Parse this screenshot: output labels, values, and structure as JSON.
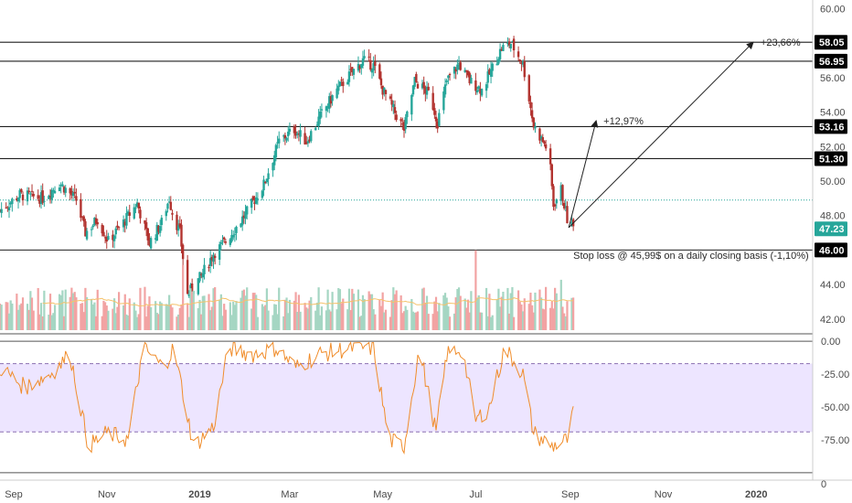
{
  "chart_data": [
    {
      "type": "candlestick",
      "price_axis": {
        "ticks": [
          "60.00",
          "58.00",
          "56.00",
          "54.00",
          "52.00",
          "50.00",
          "48.00",
          "46.00",
          "44.00",
          "42.00"
        ],
        "tick_values": [
          60,
          58,
          56,
          54,
          52,
          50,
          48,
          46,
          44,
          42
        ],
        "ylim": [
          41.3,
          60.5
        ]
      },
      "x_axis": {
        "ticks": [
          "Sep",
          "Nov",
          "2019",
          "Mar",
          "May",
          "Jul",
          "Sep",
          "Nov",
          "2020"
        ],
        "tick_dates": [
          "2018-09-01",
          "2018-11-01",
          "2019-01-01",
          "2019-03-01",
          "2019-05-01",
          "2019-07-01",
          "2019-09-01",
          "2019-11-01",
          "2020-01-01"
        ],
        "xlim": [
          "2018-08-23",
          "2020-02-07"
        ]
      },
      "horizontal_levels": [
        {
          "value": 58.05,
          "label": "58.05"
        },
        {
          "value": 56.95,
          "label": "56.95"
        },
        {
          "value": 53.16,
          "label": "53.16"
        },
        {
          "value": 51.3,
          "label": "51.30"
        },
        {
          "value": 46.0,
          "label": "46.00"
        }
      ],
      "current_price": {
        "value": 47.23,
        "label": "47.23",
        "color": "#26a69a"
      },
      "last_price_dotted_line": 47.23,
      "annotations": [
        {
          "text": "+23,66%",
          "from": {
            "date": "2019-08-31",
            "price": 47.3
          },
          "to": {
            "date": "2019-12-30",
            "price": 58.05
          }
        },
        {
          "text": "+12,97%",
          "from": {
            "date": "2019-08-31",
            "price": 47.3
          },
          "to": {
            "date": "2019-09-18",
            "price": 53.5
          }
        },
        {
          "text": "Stop loss @ 45,99$ on a daily closing basis (-1,10%)",
          "date": "2019-09-03",
          "price": 45.7
        }
      ],
      "colors": {
        "up": "#26a69a",
        "down": "#b2332f",
        "volume_up": "#a5d6c3",
        "volume_down": "#f2a3a3",
        "volume_ma": "#f5c26b"
      },
      "anchors": [
        [
          "2018-08-23",
          48.3
        ],
        [
          "2018-09-05",
          49.2
        ],
        [
          "2018-09-20",
          49.0
        ],
        [
          "2018-10-01",
          49.9
        ],
        [
          "2018-10-12",
          48.9
        ],
        [
          "2018-10-18",
          47.0
        ],
        [
          "2018-10-26",
          47.8
        ],
        [
          "2018-11-02",
          46.5
        ],
        [
          "2018-11-12",
          47.6
        ],
        [
          "2018-11-21",
          48.7
        ],
        [
          "2018-11-29",
          46.4
        ],
        [
          "2018-12-07",
          47.6
        ],
        [
          "2018-12-12",
          49.0
        ],
        [
          "2018-12-14",
          48.2
        ],
        [
          "2018-12-19",
          47.0
        ],
        [
          "2018-12-24",
          43.4
        ],
        [
          "2019-01-02",
          44.5
        ],
        [
          "2019-01-10",
          45.8
        ],
        [
          "2019-01-18",
          46.5
        ],
        [
          "2019-02-01",
          48.2
        ],
        [
          "2019-02-12",
          49.8
        ],
        [
          "2019-02-22",
          52.3
        ],
        [
          "2019-03-04",
          53.0
        ],
        [
          "2019-03-12",
          52.3
        ],
        [
          "2019-03-22",
          53.9
        ],
        [
          "2019-04-01",
          55.3
        ],
        [
          "2019-04-10",
          56.2
        ],
        [
          "2019-04-18",
          57.0
        ],
        [
          "2019-04-25",
          56.7
        ],
        [
          "2019-05-01",
          55.3
        ],
        [
          "2019-05-10",
          53.8
        ],
        [
          "2019-05-15",
          53.0
        ],
        [
          "2019-05-22",
          55.8
        ],
        [
          "2019-06-01",
          55.0
        ],
        [
          "2019-06-06",
          53.4
        ],
        [
          "2019-06-12",
          55.8
        ],
        [
          "2019-06-20",
          56.8
        ],
        [
          "2019-06-27",
          55.8
        ],
        [
          "2019-07-05",
          55.3
        ],
        [
          "2019-07-10",
          56.2
        ],
        [
          "2019-07-18",
          57.7
        ],
        [
          "2019-07-24",
          58.0
        ],
        [
          "2019-08-01",
          56.8
        ],
        [
          "2019-08-05",
          54.8
        ],
        [
          "2019-08-08",
          53.2
        ],
        [
          "2019-08-14",
          52.3
        ],
        [
          "2019-08-18",
          51.7
        ],
        [
          "2019-08-21",
          48.6
        ],
        [
          "2019-08-26",
          49.5
        ],
        [
          "2019-08-30",
          47.8
        ],
        [
          "2019-09-03",
          47.3
        ]
      ]
    },
    {
      "type": "volume",
      "ma_color": "#f5c26b"
    },
    {
      "type": "line",
      "indicator": "oscillator",
      "y_ticks": [
        "0.00",
        "-25.00",
        "-50.00",
        "-75.00"
      ],
      "y_tick_values": [
        0,
        -25,
        -50,
        -75
      ],
      "extra_tick": {
        "label": "0",
        "value": -100
      },
      "ylim": [
        -105,
        5
      ],
      "upper_band": -17,
      "lower_band": -69,
      "band_fill": "#ede5ff",
      "line_color": "#f08c2a",
      "anchors": [
        [
          "2018-08-23",
          -20
        ],
        [
          "2018-09-08",
          -35
        ],
        [
          "2018-09-25",
          -25
        ],
        [
          "2018-10-08",
          -10
        ],
        [
          "2018-10-20",
          -80
        ],
        [
          "2018-11-01",
          -70
        ],
        [
          "2018-11-15",
          -75
        ],
        [
          "2018-11-25",
          -5
        ],
        [
          "2018-12-08",
          -20
        ],
        [
          "2018-12-15",
          -5
        ],
        [
          "2018-12-28",
          -80
        ],
        [
          "2019-01-10",
          -65
        ],
        [
          "2019-01-20",
          -5
        ],
        [
          "2019-02-05",
          -10
        ],
        [
          "2019-02-20",
          -5
        ],
        [
          "2019-03-05",
          -20
        ],
        [
          "2019-03-20",
          -10
        ],
        [
          "2019-04-10",
          -5
        ],
        [
          "2019-04-25",
          -5
        ],
        [
          "2019-05-05",
          -75
        ],
        [
          "2019-05-15",
          -80
        ],
        [
          "2019-05-25",
          -5
        ],
        [
          "2019-06-05",
          -70
        ],
        [
          "2019-06-12",
          -10
        ],
        [
          "2019-06-22",
          -5
        ],
        [
          "2019-07-01",
          -60
        ],
        [
          "2019-07-10",
          -50
        ],
        [
          "2019-07-20",
          -5
        ],
        [
          "2019-08-01",
          -25
        ],
        [
          "2019-08-08",
          -70
        ],
        [
          "2019-08-20",
          -80
        ],
        [
          "2019-08-30",
          -75
        ],
        [
          "2019-09-03",
          -55
        ]
      ]
    }
  ]
}
